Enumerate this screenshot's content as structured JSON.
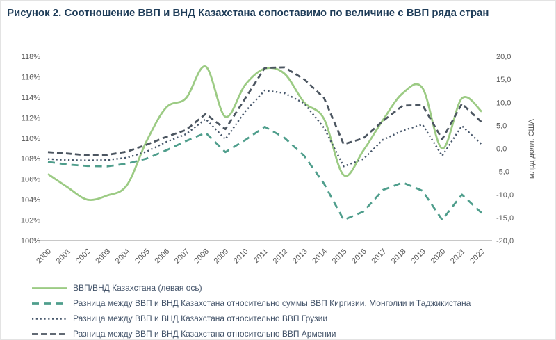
{
  "figure": {
    "title": "Рисунок 2. Соотношение ВВП и ВНД Казахстана сопоставимо по величине с ВВП ряда стран",
    "title_color": "#1e3c58",
    "legend_text_color": "#44546a"
  },
  "chart_data": {
    "type": "line",
    "title": "Рисунок 2. Соотношение ВВП и ВНД Казахстана сопоставимо по величине с ВВП ряда стран",
    "grid": "off",
    "legend_position": "bottom",
    "axis_color": "#a8a8a8",
    "tick_color": "#595959",
    "x": [
      2000,
      2001,
      2002,
      2003,
      2004,
      2005,
      2006,
      2007,
      2008,
      2009,
      2010,
      2011,
      2012,
      2013,
      2014,
      2015,
      2016,
      2017,
      2018,
      2019,
      2020,
      2021,
      2022
    ],
    "left_axis": {
      "min": 100,
      "max": 118,
      "ticks": [
        "118%",
        "116%",
        "114%",
        "112%",
        "110%",
        "108%",
        "106%",
        "104%",
        "102%",
        "100%"
      ]
    },
    "right_axis": {
      "label": "млрд долл. США",
      "min": -20,
      "max": 20,
      "ticks": [
        "20,0",
        "15,0",
        "10,0",
        "5,0",
        "0,0",
        "-5,0",
        "-10,0",
        "-15,0",
        "-20,0"
      ]
    },
    "series": [
      {
        "name": "ВВП/ВНД Казахстана (левая ось)",
        "axis": "left",
        "style": "solid",
        "color": "#9ccb84",
        "values": [
          106.5,
          105.2,
          104.0,
          104.4,
          105.4,
          109.7,
          113.0,
          113.9,
          117.0,
          112.1,
          115.2,
          116.8,
          116.3,
          113.5,
          111.9,
          106.4,
          108.8,
          111.8,
          114.4,
          114.9,
          109.0,
          113.9,
          112.6
        ]
      },
      {
        "name": "Разница между ВВП и ВНД Казахстана относительно суммы ВВП Киргизии, Монголии и Таджикистана",
        "axis": "right",
        "style": "dash-long",
        "color": "#4f9e8c",
        "values": [
          -2.9,
          -3.5,
          -3.8,
          -3.9,
          -3.3,
          -2.2,
          -0.4,
          1.6,
          3.4,
          -0.8,
          1.8,
          4.7,
          2.3,
          -1.6,
          -7.6,
          -15.5,
          -13.7,
          -9.0,
          -7.4,
          -9.2,
          -15.5,
          -10.0,
          -14.0
        ]
      },
      {
        "name": "Разница между ВВП и ВНД Казахстана относительно ВВП Грузии",
        "axis": "right",
        "style": "dotted",
        "color": "#46566a",
        "values": [
          -2.3,
          -2.5,
          -2.6,
          -2.5,
          -2.0,
          -0.7,
          1.4,
          3.1,
          6.4,
          2.0,
          8.0,
          12.6,
          12.0,
          9.8,
          4.5,
          -3.9,
          -2.3,
          1.9,
          3.9,
          5.2,
          -1.6,
          4.9,
          0.9
        ]
      },
      {
        "name": "Разница между ВВП и ВНД Казахстана относительно ВВП Армении",
        "axis": "right",
        "style": "dash",
        "color": "#4c5661",
        "values": [
          -0.8,
          -1.1,
          -1.5,
          -1.4,
          -0.7,
          0.8,
          2.5,
          4.0,
          7.5,
          4.2,
          10.8,
          17.5,
          17.6,
          15.0,
          11.0,
          0.9,
          2.2,
          6.0,
          9.3,
          9.4,
          2.0,
          9.7,
          5.7
        ]
      }
    ]
  }
}
